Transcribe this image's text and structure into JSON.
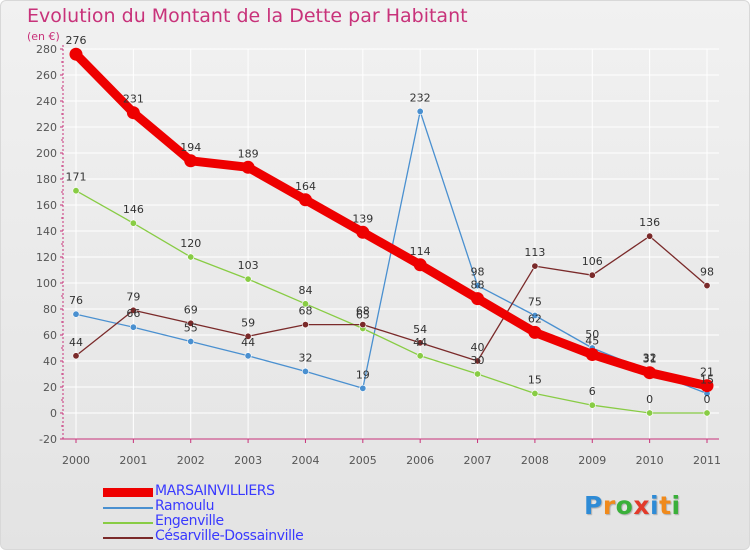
{
  "header": {
    "title": "Evolution du Montant de la Dette par Habitant",
    "unit": "(en €)"
  },
  "logo": {
    "text": "Proxiti",
    "letter_colors": [
      "#2e8bd6",
      "#f08a1c",
      "#3ab03a",
      "#e23a2a",
      "#2e8bd6",
      "#f08a1c",
      "#3ab03a"
    ]
  },
  "colors": {
    "title": "#c8327a",
    "legend_text": "#3a3aff",
    "axis": "#c8327a",
    "grid": "#ffffff"
  },
  "chart_data": {
    "type": "line",
    "title": "Evolution du Montant de la Dette par Habitant",
    "ylabel": "(en €)",
    "xlabel": "",
    "x": [
      "2000",
      "2001",
      "2002",
      "2003",
      "2004",
      "2005",
      "2006",
      "2007",
      "2008",
      "2009",
      "2010",
      "2011"
    ],
    "ylim": [
      -20,
      280
    ],
    "yticks": [
      -20,
      0,
      20,
      40,
      60,
      80,
      100,
      120,
      140,
      160,
      180,
      200,
      220,
      240,
      260,
      280
    ],
    "grid": true,
    "legend_position": "bottom-left",
    "series": [
      {
        "name": "MARSAINVILLIERS",
        "color": "#ee0000",
        "values": [
          276,
          231,
          194,
          189,
          164,
          139,
          114,
          88,
          62,
          45,
          31,
          21
        ],
        "labels": [
          "276",
          "231",
          "194",
          "189",
          "164",
          "139",
          "114",
          "88",
          "62",
          "45",
          "31",
          "21"
        ]
      },
      {
        "name": "Ramoulu",
        "color": "#4a90d0",
        "values": [
          76,
          66,
          55,
          44,
          32,
          19,
          232,
          98,
          75,
          50,
          32,
          15
        ],
        "labels": [
          "76",
          "66",
          "55",
          "44",
          "32",
          "19",
          "232",
          "98",
          "75",
          "50",
          "32",
          "15"
        ]
      },
      {
        "name": "Engenville",
        "color": "#88cc44",
        "values": [
          171,
          146,
          120,
          103,
          84,
          65,
          44,
          30,
          15,
          6,
          0,
          0
        ],
        "labels": [
          "171",
          "146",
          "120",
          "103",
          "84",
          "65",
          "44",
          "30",
          "15",
          "6",
          "0",
          "0"
        ]
      },
      {
        "name": "Césarville-Dossainville",
        "color": "#7a2a2a",
        "values": [
          44,
          79,
          69,
          59,
          68,
          68,
          54,
          40,
          113,
          106,
          136,
          98
        ],
        "labels": [
          "44",
          "79",
          "69",
          "59",
          "68",
          "68",
          "54",
          "40",
          "113",
          "106",
          "136",
          "98"
        ]
      }
    ]
  }
}
